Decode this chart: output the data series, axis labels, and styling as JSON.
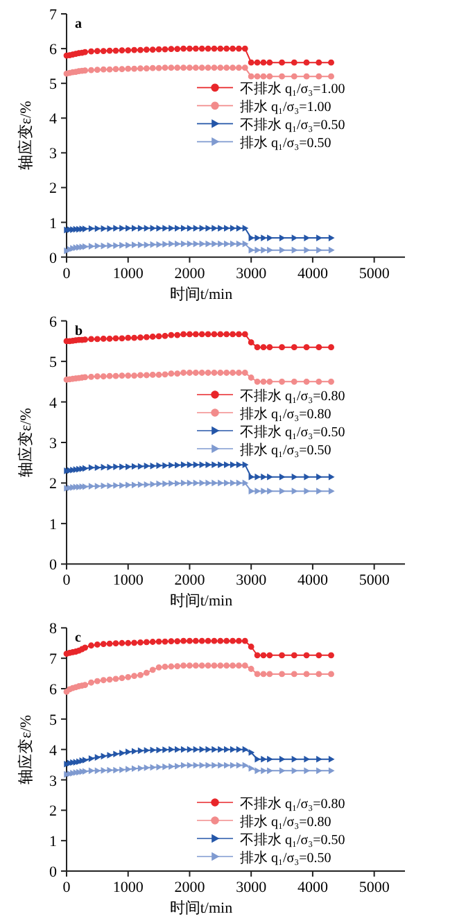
{
  "chart_data": [
    {
      "type": "line",
      "title": "a",
      "xlabel": "时间t/min",
      "ylabel": "轴应变ε/%",
      "xlim": [
        0,
        5500
      ],
      "xticks": [
        0,
        1000,
        2000,
        3000,
        4000,
        5000
      ],
      "ylim": [
        0,
        7
      ],
      "yticks": [
        0,
        1,
        2,
        3,
        4,
        5,
        6,
        7
      ],
      "legend": "right",
      "line_style": "solid",
      "x": [
        0,
        50,
        100,
        150,
        200,
        250,
        300,
        400,
        500,
        600,
        700,
        800,
        900,
        1000,
        1100,
        1200,
        1300,
        1400,
        1500,
        1600,
        1700,
        1800,
        1900,
        2000,
        2100,
        2200,
        2300,
        2400,
        2500,
        2600,
        2700,
        2800,
        2900,
        3000,
        3100,
        3200,
        3300,
        3500,
        3700,
        3900,
        4100,
        4300
      ],
      "series": [
        {
          "name": "不排水 q₁/σ₃=1.00",
          "color": "#e8262a",
          "marker": "circle",
          "values": [
            5.8,
            5.81,
            5.83,
            5.85,
            5.87,
            5.88,
            5.9,
            5.92,
            5.93,
            5.93,
            5.94,
            5.94,
            5.95,
            5.95,
            5.96,
            5.96,
            5.97,
            5.97,
            5.98,
            5.98,
            5.99,
            5.99,
            6.0,
            6.0,
            6.0,
            6.0,
            6.0,
            6.0,
            6.0,
            6.0,
            6.0,
            6.0,
            6.0,
            5.6,
            5.6,
            5.6,
            5.6,
            5.6,
            5.6,
            5.6,
            5.6,
            5.6
          ]
        },
        {
          "name": "排水 q₁/σ₃=1.00",
          "color": "#f28b8b",
          "marker": "circle",
          "values": [
            5.28,
            5.3,
            5.32,
            5.33,
            5.35,
            5.36,
            5.37,
            5.38,
            5.39,
            5.4,
            5.4,
            5.41,
            5.41,
            5.42,
            5.42,
            5.43,
            5.43,
            5.44,
            5.44,
            5.45,
            5.45,
            5.45,
            5.45,
            5.45,
            5.45,
            5.45,
            5.45,
            5.45,
            5.45,
            5.45,
            5.45,
            5.45,
            5.45,
            5.2,
            5.2,
            5.2,
            5.2,
            5.2,
            5.2,
            5.2,
            5.2,
            5.2
          ]
        },
        {
          "name": "不排水 q₁/σ₃=0.50",
          "color": "#2456a8",
          "marker": "triangle",
          "values": [
            0.78,
            0.79,
            0.79,
            0.8,
            0.8,
            0.81,
            0.81,
            0.82,
            0.82,
            0.82,
            0.82,
            0.83,
            0.83,
            0.83,
            0.83,
            0.83,
            0.83,
            0.83,
            0.83,
            0.83,
            0.83,
            0.83,
            0.83,
            0.83,
            0.83,
            0.83,
            0.83,
            0.83,
            0.83,
            0.83,
            0.83,
            0.83,
            0.83,
            0.55,
            0.55,
            0.55,
            0.55,
            0.55,
            0.55,
            0.55,
            0.55,
            0.55
          ]
        },
        {
          "name": "排水 q₁/σ₃=0.50",
          "color": "#7f9ad0",
          "marker": "triangle",
          "values": [
            0.18,
            0.22,
            0.25,
            0.27,
            0.28,
            0.29,
            0.3,
            0.31,
            0.32,
            0.32,
            0.33,
            0.33,
            0.34,
            0.34,
            0.35,
            0.35,
            0.35,
            0.36,
            0.36,
            0.37,
            0.38,
            0.38,
            0.38,
            0.38,
            0.38,
            0.38,
            0.38,
            0.38,
            0.38,
            0.38,
            0.38,
            0.38,
            0.38,
            0.2,
            0.2,
            0.2,
            0.2,
            0.2,
            0.2,
            0.2,
            0.2,
            0.2
          ]
        }
      ]
    },
    {
      "type": "line",
      "title": "b",
      "xlabel": "时间t/min",
      "ylabel": "轴应变ε/%",
      "xlim": [
        0,
        5500
      ],
      "xticks": [
        0,
        1000,
        2000,
        3000,
        4000,
        5000
      ],
      "ylim": [
        0,
        6
      ],
      "yticks": [
        0,
        1,
        2,
        3,
        4,
        5,
        6
      ],
      "legend": "right",
      "line_style": "solid",
      "x": [
        0,
        50,
        100,
        150,
        200,
        250,
        300,
        400,
        500,
        600,
        700,
        800,
        900,
        1000,
        1100,
        1200,
        1300,
        1400,
        1500,
        1600,
        1700,
        1800,
        1900,
        2000,
        2100,
        2200,
        2300,
        2400,
        2500,
        2600,
        2700,
        2800,
        2900,
        3000,
        3100,
        3200,
        3300,
        3500,
        3700,
        3900,
        4100,
        4300
      ],
      "series": [
        {
          "name": "不排水 q₁/σ₃=0.80",
          "color": "#e8262a",
          "marker": "circle",
          "values": [
            5.5,
            5.5,
            5.51,
            5.52,
            5.53,
            5.53,
            5.54,
            5.55,
            5.55,
            5.56,
            5.56,
            5.57,
            5.57,
            5.58,
            5.58,
            5.59,
            5.6,
            5.61,
            5.62,
            5.63,
            5.65,
            5.65,
            5.67,
            5.67,
            5.67,
            5.67,
            5.67,
            5.67,
            5.67,
            5.67,
            5.67,
            5.67,
            5.67,
            5.47,
            5.35,
            5.35,
            5.35,
            5.35,
            5.35,
            5.35,
            5.35,
            5.35
          ]
        },
        {
          "name": "排水 q₁/σ₃=0.80",
          "color": "#f28b8b",
          "marker": "circle",
          "values": [
            4.55,
            4.56,
            4.57,
            4.58,
            4.59,
            4.6,
            4.61,
            4.62,
            4.63,
            4.63,
            4.64,
            4.64,
            4.65,
            4.65,
            4.65,
            4.66,
            4.66,
            4.67,
            4.67,
            4.68,
            4.7,
            4.7,
            4.72,
            4.72,
            4.72,
            4.72,
            4.72,
            4.72,
            4.72,
            4.72,
            4.72,
            4.72,
            4.72,
            4.6,
            4.5,
            4.5,
            4.5,
            4.5,
            4.5,
            4.5,
            4.5,
            4.5
          ]
        },
        {
          "name": "不排水 q₁/σ₃=0.50",
          "color": "#2456a8",
          "marker": "triangle",
          "values": [
            2.3,
            2.31,
            2.32,
            2.33,
            2.34,
            2.35,
            2.36,
            2.38,
            2.38,
            2.39,
            2.39,
            2.4,
            2.4,
            2.4,
            2.41,
            2.41,
            2.42,
            2.42,
            2.43,
            2.43,
            2.44,
            2.44,
            2.45,
            2.45,
            2.45,
            2.45,
            2.45,
            2.45,
            2.45,
            2.45,
            2.45,
            2.45,
            2.45,
            2.15,
            2.15,
            2.15,
            2.15,
            2.15,
            2.15,
            2.15,
            2.15,
            2.15
          ]
        },
        {
          "name": "排水 q₁/σ₃=0.50",
          "color": "#7f9ad0",
          "marker": "triangle",
          "values": [
            1.87,
            1.88,
            1.89,
            1.9,
            1.9,
            1.91,
            1.91,
            1.92,
            1.92,
            1.93,
            1.93,
            1.94,
            1.94,
            1.95,
            1.95,
            1.96,
            1.96,
            1.97,
            1.98,
            1.98,
            1.99,
            1.99,
            2.0,
            2.0,
            2.0,
            2.0,
            2.0,
            2.0,
            2.0,
            2.0,
            2.0,
            2.0,
            2.0,
            1.8,
            1.8,
            1.8,
            1.8,
            1.8,
            1.8,
            1.8,
            1.8,
            1.8
          ]
        }
      ]
    },
    {
      "type": "line",
      "title": "c",
      "xlabel": "时间t/min",
      "ylabel": "轴应变ε/%",
      "xlim": [
        0,
        5500
      ],
      "xticks": [
        0,
        1000,
        2000,
        3000,
        4000,
        5000
      ],
      "ylim": [
        0,
        8
      ],
      "yticks": [
        0,
        1,
        2,
        3,
        4,
        5,
        6,
        7,
        8
      ],
      "legend": "bottom right",
      "line_style": "solid",
      "x": [
        0,
        50,
        100,
        150,
        200,
        250,
        300,
        400,
        500,
        600,
        700,
        800,
        900,
        1000,
        1100,
        1200,
        1300,
        1400,
        1500,
        1600,
        1700,
        1800,
        1900,
        2000,
        2100,
        2200,
        2300,
        2400,
        2500,
        2600,
        2700,
        2800,
        2900,
        3000,
        3100,
        3200,
        3300,
        3500,
        3700,
        3900,
        4100,
        4300
      ],
      "series": [
        {
          "name": "不排水 q₁/σ₃=0.80",
          "color": "#e8262a",
          "marker": "circle",
          "values": [
            7.15,
            7.18,
            7.2,
            7.22,
            7.25,
            7.3,
            7.35,
            7.42,
            7.45,
            7.47,
            7.48,
            7.49,
            7.5,
            7.5,
            7.51,
            7.52,
            7.53,
            7.54,
            7.55,
            7.55,
            7.56,
            7.56,
            7.57,
            7.57,
            7.57,
            7.57,
            7.57,
            7.57,
            7.57,
            7.57,
            7.57,
            7.57,
            7.57,
            7.38,
            7.1,
            7.1,
            7.1,
            7.1,
            7.1,
            7.1,
            7.1,
            7.1
          ]
        },
        {
          "name": "排水 q₁/σ₃=0.80",
          "color": "#f28b8b",
          "marker": "circle",
          "values": [
            5.9,
            5.98,
            6.02,
            6.05,
            6.08,
            6.1,
            6.12,
            6.2,
            6.25,
            6.28,
            6.3,
            6.32,
            6.35,
            6.38,
            6.42,
            6.45,
            6.52,
            6.62,
            6.7,
            6.72,
            6.73,
            6.74,
            6.76,
            6.76,
            6.76,
            6.76,
            6.76,
            6.76,
            6.76,
            6.76,
            6.76,
            6.76,
            6.76,
            6.65,
            6.48,
            6.48,
            6.48,
            6.48,
            6.48,
            6.48,
            6.48,
            6.48
          ]
        },
        {
          "name": "不排水 q₁/σ₃=0.50",
          "color": "#2456a8",
          "marker": "triangle",
          "values": [
            3.52,
            3.55,
            3.57,
            3.58,
            3.6,
            3.63,
            3.65,
            3.7,
            3.74,
            3.78,
            3.81,
            3.85,
            3.88,
            3.92,
            3.94,
            3.96,
            3.97,
            3.98,
            3.98,
            3.99,
            4.0,
            4.0,
            4.0,
            4.0,
            4.0,
            4.0,
            4.0,
            4.0,
            4.0,
            4.0,
            4.0,
            4.0,
            4.0,
            3.9,
            3.68,
            3.68,
            3.68,
            3.68,
            3.68,
            3.68,
            3.68,
            3.68
          ]
        },
        {
          "name": "排水 q₁/σ₃=0.50",
          "color": "#7f9ad0",
          "marker": "triangle",
          "values": [
            3.18,
            3.2,
            3.22,
            3.24,
            3.25,
            3.27,
            3.28,
            3.3,
            3.3,
            3.31,
            3.32,
            3.32,
            3.33,
            3.35,
            3.37,
            3.38,
            3.4,
            3.41,
            3.42,
            3.43,
            3.44,
            3.45,
            3.48,
            3.48,
            3.48,
            3.48,
            3.48,
            3.48,
            3.48,
            3.48,
            3.48,
            3.48,
            3.48,
            3.38,
            3.3,
            3.3,
            3.3,
            3.3,
            3.3,
            3.3,
            3.3,
            3.3
          ]
        }
      ]
    }
  ]
}
